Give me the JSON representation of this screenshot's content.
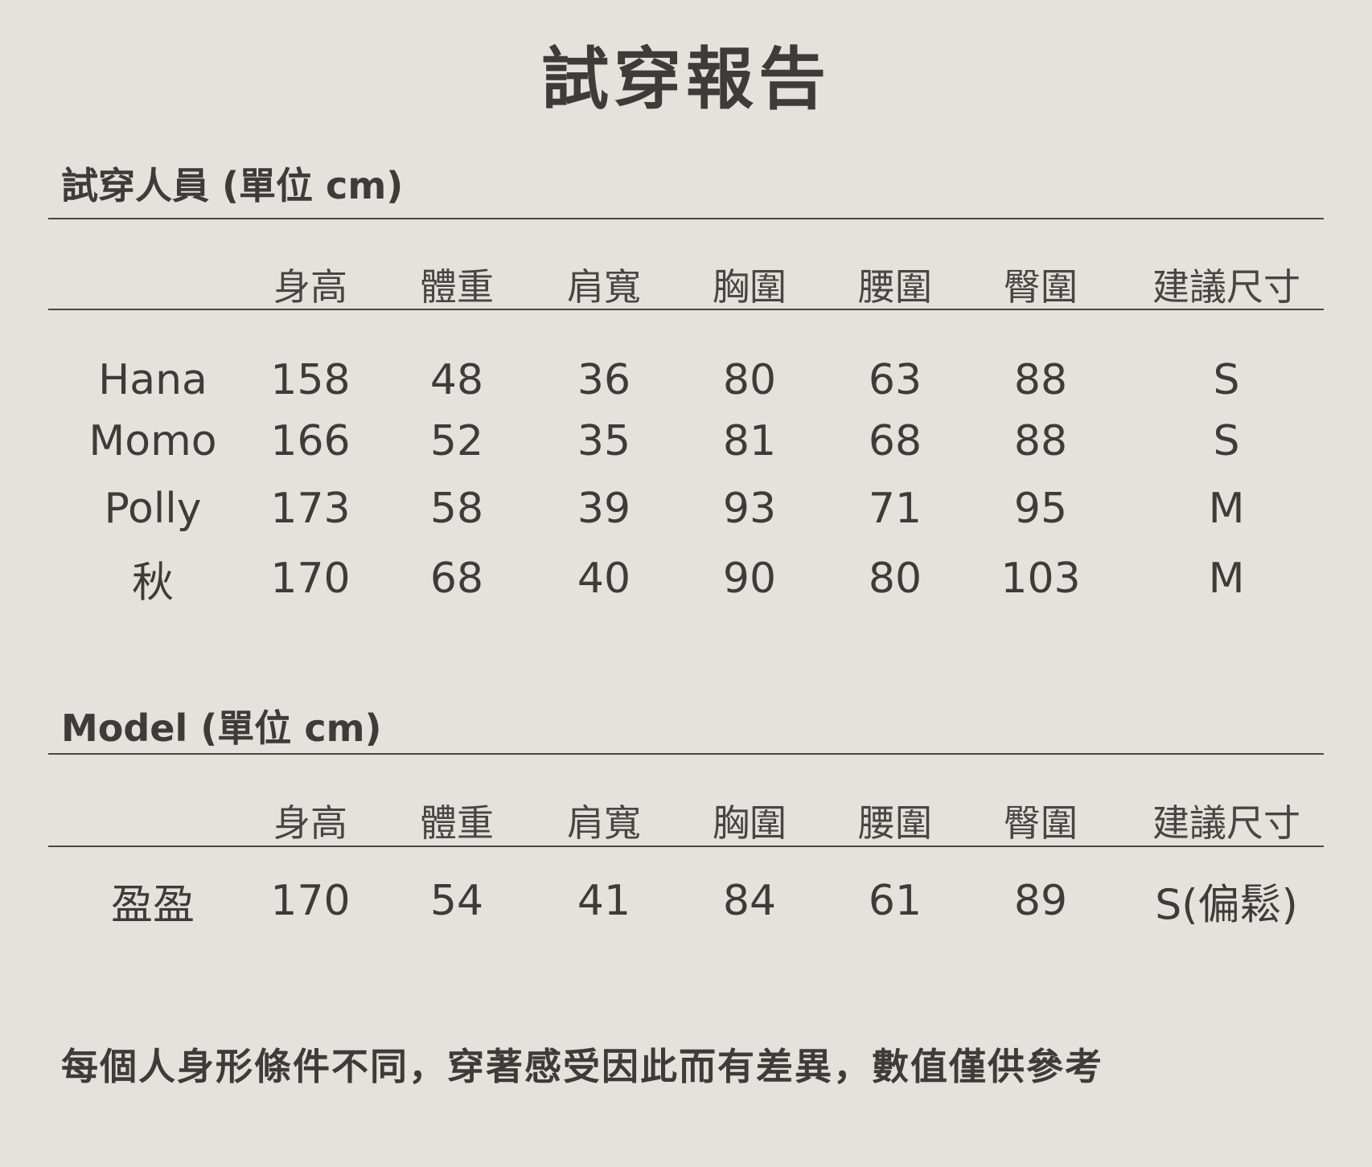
{
  "title": "試穿報告",
  "columns": [
    "身高",
    "體重",
    "肩寬",
    "胸圍",
    "腰圍",
    "臀圍",
    "建議尺寸"
  ],
  "sections": [
    {
      "heading": "試穿人員 (單位 cm)",
      "rows": [
        [
          "Hana",
          "158",
          "48",
          "36",
          "80",
          "63",
          "88",
          "S"
        ],
        [
          "Momo",
          "166",
          "52",
          "35",
          "81",
          "68",
          "88",
          "S"
        ],
        [
          "Polly",
          "173",
          "58",
          "39",
          "93",
          "71",
          "95",
          "M"
        ],
        [
          "秋",
          "170",
          "68",
          "40",
          "90",
          "80",
          "103",
          "M"
        ]
      ]
    },
    {
      "heading": "Model (單位 cm)",
      "rows": [
        [
          "盈盈",
          "170",
          "54",
          "41",
          "84",
          "61",
          "89",
          "S(偏鬆)"
        ]
      ]
    }
  ],
  "footer": "每個人身形條件不同，穿著感受因此而有差異，數值僅供參考",
  "colors": {
    "background": "#e3e2dd",
    "text": "#3f3b38"
  }
}
